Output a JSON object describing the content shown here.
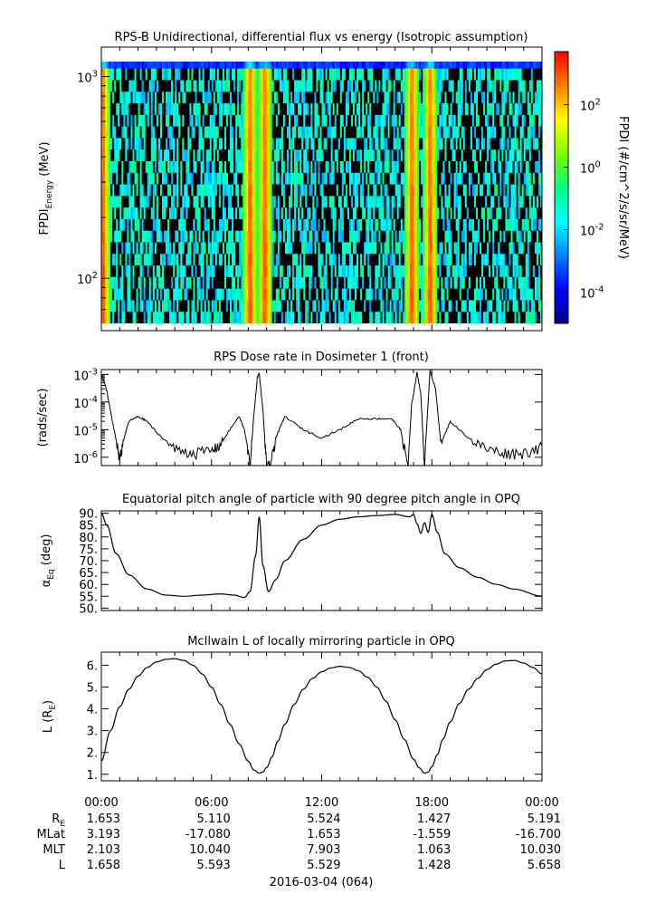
{
  "chart_data": [
    {
      "type": "heatmap",
      "title": "RPS-B  Unidirectional, differential flux vs energy (Isotropic assumption)",
      "ylabel_main": "FPDI",
      "ylabel_sub": "Energy",
      "ylabel_unit": " (MeV)",
      "yscale": "log",
      "ylim": [
        55,
        1400
      ],
      "y_ticks": [
        {
          "value": 100,
          "base": "10",
          "exp": "2"
        },
        {
          "value": 1000,
          "base": "10",
          "exp": "3"
        }
      ],
      "x": [
        0,
        1,
        2,
        3,
        4,
        5,
        6,
        7,
        8,
        9,
        10,
        11,
        12,
        13,
        14,
        15,
        16,
        17,
        18,
        19,
        20,
        21,
        22,
        23,
        24
      ],
      "band_peaks_hours": [
        0.1,
        8.1,
        8.9,
        16.9,
        17.9
      ],
      "colorbar": {
        "label": "FPDI (#/cm^2/s/sr/MeV)",
        "scale": "log",
        "range": [
          1e-05,
          5000
        ],
        "ticks": [
          {
            "value": 0.0001,
            "base": "10",
            "exp": "-4"
          },
          {
            "value": 0.01,
            "base": "10",
            "exp": "-2"
          },
          {
            "value": 1,
            "base": "10",
            "exp": "0"
          },
          {
            "value": 100,
            "base": "10",
            "exp": "2"
          }
        ],
        "colors": [
          "#00007f",
          "#0000ff",
          "#0080ff",
          "#00ffff",
          "#00ff80",
          "#80ff00",
          "#ffff00",
          "#ff8000",
          "#ff0000"
        ]
      }
    },
    {
      "type": "line",
      "title": "RPS  Dose rate in Dosimeter 1 (front)",
      "ylabel": "(rads/sec)",
      "yscale": "log",
      "ylim": [
        5e-07,
        0.0015
      ],
      "y_ticks": [
        {
          "value": 1e-06,
          "base": "10",
          "exp": "-6"
        },
        {
          "value": 1e-05,
          "base": "10",
          "exp": "-5"
        },
        {
          "value": 0.0001,
          "base": "10",
          "exp": "-4"
        },
        {
          "value": 0.001,
          "base": "10",
          "exp": "-3"
        }
      ],
      "x_hours": [
        0,
        0.3,
        0.6,
        0.9,
        1.0,
        1.2,
        1.5,
        2.0,
        2.5,
        3.0,
        4.0,
        5.0,
        6.0,
        6.5,
        7.0,
        7.5,
        7.8,
        8.1,
        8.3,
        8.5,
        8.6,
        8.8,
        9.0,
        9.2,
        9.5,
        10.0,
        11.0,
        12.0,
        13.0,
        14.0,
        15.0,
        15.8,
        16.3,
        16.7,
        16.9,
        17.2,
        17.4,
        17.6,
        17.9,
        18.2,
        18.5,
        19.0,
        20.0,
        21.0,
        22.0,
        23.0,
        24.0
      ],
      "y": [
        0.0011,
        0.00025,
        2e-05,
        2e-06,
        8e-07,
        4e-06,
        2e-05,
        3e-05,
        2e-05,
        8e-06,
        2e-06,
        1.5e-06,
        1.8e-06,
        3e-06,
        1e-05,
        3e-05,
        1e-05,
        5e-07,
        3e-05,
        0.0008,
        0.0011,
        5e-05,
        5e-07,
        5e-07,
        5e-06,
        3e-05,
        1e-05,
        5e-06,
        1e-05,
        2.5e-05,
        2.5e-05,
        2.5e-05,
        1e-05,
        5e-07,
        8e-05,
        0.0012,
        0.0002,
        5e-07,
        0.0014,
        0.0003,
        3e-06,
        2e-05,
        5e-06,
        2e-06,
        1.5e-06,
        1.5e-06,
        2.5e-06
      ]
    },
    {
      "type": "line",
      "title": "Equatorial pitch angle of particle with 90 degree pitch angle in OPQ",
      "ylabel_main": "α",
      "ylabel_sub": "Eq",
      "ylabel_unit": " (deg)",
      "ylim": [
        49,
        91
      ],
      "y_ticks": [
        50,
        55,
        60,
        65,
        70,
        75,
        80,
        85,
        90
      ],
      "y_tick_labels": [
        "50.",
        "55.",
        "60.",
        "65.",
        "70.",
        "75.",
        "80.",
        "85.",
        "90."
      ],
      "x_hours": [
        0,
        0.3,
        0.8,
        1.5,
        2.5,
        3.5,
        4.5,
        5.5,
        6.5,
        7.2,
        7.8,
        8.1,
        8.4,
        8.6,
        8.8,
        9.1,
        9.5,
        10.0,
        11.0,
        12.0,
        13.0,
        14.0,
        15.0,
        16.0,
        16.8,
        17.0,
        17.2,
        17.4,
        17.6,
        17.8,
        18.0,
        18.3,
        18.7,
        19.5,
        20.5,
        21.5,
        22.5,
        24.0
      ],
      "y": [
        90,
        85,
        73,
        64,
        58,
        55.5,
        55,
        55.5,
        56,
        55.5,
        54.5,
        57,
        72,
        88.5,
        68,
        57,
        62,
        70,
        79,
        85,
        87.5,
        88.5,
        89,
        89.5,
        88.5,
        89.5,
        85.5,
        81.5,
        86,
        82,
        89.5,
        82,
        73,
        67,
        63,
        60,
        58,
        55
      ]
    },
    {
      "type": "line",
      "title": "McIlwain L of locally mirroring particle in OPQ",
      "ylabel_main": "L (R",
      "ylabel_sub": "E",
      "ylabel_unit": ")",
      "ylim": [
        0.7,
        6.6
      ],
      "y_ticks": [
        1,
        2,
        3,
        4,
        5,
        6
      ],
      "y_tick_labels": [
        "1.",
        "2.",
        "3.",
        "4.",
        "5.",
        "6."
      ],
      "x_hours": [
        0,
        0.5,
        1,
        1.5,
        2,
        2.5,
        3,
        3.5,
        4,
        4.5,
        5,
        5.5,
        6,
        6.5,
        7,
        7.5,
        8,
        8.3,
        8.6,
        8.8,
        9,
        9.3,
        9.6,
        10,
        10.5,
        11,
        11.5,
        12,
        12.5,
        13,
        13.5,
        14,
        14.5,
        15,
        15.5,
        16,
        16.5,
        17,
        17.3,
        17.6,
        17.8,
        18,
        18.3,
        18.6,
        19,
        19.5,
        20,
        20.5,
        21,
        21.5,
        22,
        22.5,
        23,
        23.5,
        24
      ],
      "y": [
        1.6,
        3.0,
        4.1,
        4.9,
        5.5,
        5.9,
        6.15,
        6.27,
        6.3,
        6.22,
        6.0,
        5.6,
        5.0,
        4.2,
        3.3,
        2.4,
        1.6,
        1.2,
        1.05,
        1.1,
        1.3,
        1.8,
        2.5,
        3.3,
        4.2,
        4.9,
        5.4,
        5.7,
        5.88,
        5.95,
        5.9,
        5.75,
        5.45,
        5.0,
        4.35,
        3.5,
        2.6,
        1.7,
        1.3,
        1.05,
        1.1,
        1.35,
        1.9,
        2.6,
        3.4,
        4.25,
        4.9,
        5.4,
        5.8,
        6.05,
        6.2,
        6.22,
        6.1,
        5.9,
        5.6
      ]
    }
  ],
  "time_axis": {
    "xlim_hours": [
      0,
      24
    ],
    "tick_hours": [
      0,
      6,
      12,
      18,
      24
    ],
    "labels": [
      "00:00",
      "06:00",
      "12:00",
      "18:00",
      "00:00"
    ],
    "date_label": "2016-03-04 (064)"
  },
  "ephemeris": [
    {
      "label_main": "R",
      "label_sub": "E",
      "values": [
        "1.653",
        "5.110",
        "5.524",
        "1.427",
        "5.191"
      ]
    },
    {
      "label_main": "MLat",
      "label_sub": "",
      "values": [
        "3.193",
        "-17.080",
        "1.653",
        "-1.559",
        "-16.700"
      ]
    },
    {
      "label_main": "MLT",
      "label_sub": "",
      "values": [
        "2.103",
        "10.040",
        "7.903",
        "1.063",
        "10.030"
      ]
    },
    {
      "label_main": "L",
      "label_sub": "",
      "values": [
        "1.658",
        "5.593",
        "5.529",
        "1.428",
        "5.658"
      ]
    }
  ]
}
